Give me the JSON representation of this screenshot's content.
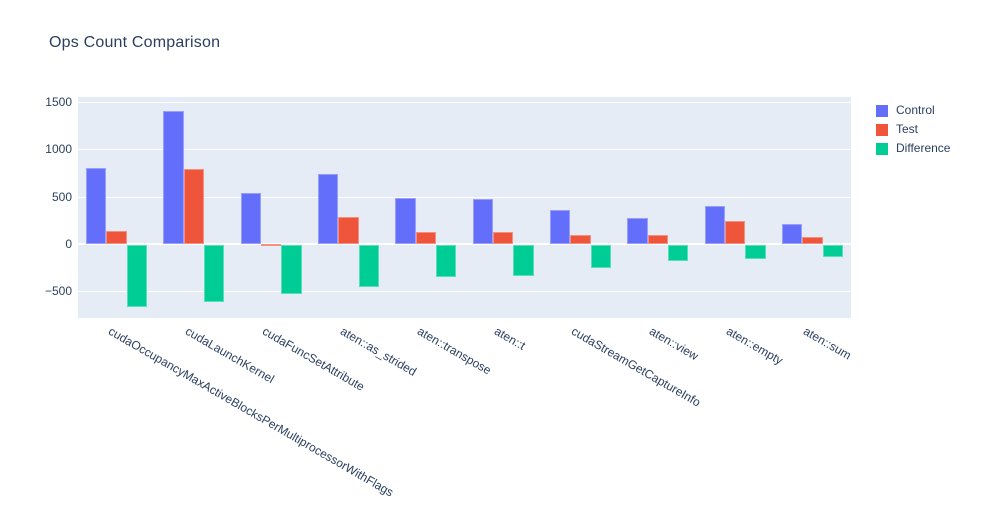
{
  "title": "Ops Count Comparison",
  "colors": {
    "control": "#636EFA",
    "test": "#EF553B",
    "difference": "#00CC96",
    "plot_background": "#E5ECF6",
    "grid": "#FFFFFF",
    "text": "#2a3f5f",
    "paper_background": "#FFFFFF"
  },
  "legend": {
    "items": [
      {
        "label": "Control",
        "color": "#636EFA"
      },
      {
        "label": "Test",
        "color": "#EF553B"
      },
      {
        "label": "Difference",
        "color": "#00CC96"
      }
    ]
  },
  "chart_data": {
    "type": "bar",
    "title": "Ops Count Comparison",
    "categories": [
      "cudaOccupancyMaxActiveBlocksPerMultiprocessorWithFlags",
      "cudaLaunchKernel",
      "cudaFuncSetAttribute",
      "aten::as_strided",
      "aten::transpose",
      "aten::t",
      "cudaStreamGetCaptureInfo",
      "aten::view",
      "aten::empty",
      "aten::sum"
    ],
    "series": [
      {
        "name": "Control",
        "color": "#636EFA",
        "values": [
          800,
          1400,
          535,
          740,
          480,
          470,
          355,
          275,
          400,
          210
        ]
      },
      {
        "name": "Test",
        "color": "#EF553B",
        "values": [
          135,
          790,
          5,
          290,
          130,
          130,
          100,
          100,
          245,
          70
        ]
      },
      {
        "name": "Difference",
        "color": "#00CC96",
        "values": [
          -665,
          -610,
          -530,
          -450,
          -350,
          -340,
          -255,
          -175,
          -155,
          -140
        ]
      }
    ],
    "xlabel": "",
    "ylabel": "",
    "yticks": [
      -500,
      0,
      500,
      1000,
      1500
    ],
    "ylim": [
      -780,
      1550
    ],
    "xtick_angle": 30,
    "grid": true,
    "legend_position": "right-top",
    "bar_mode": "group"
  }
}
